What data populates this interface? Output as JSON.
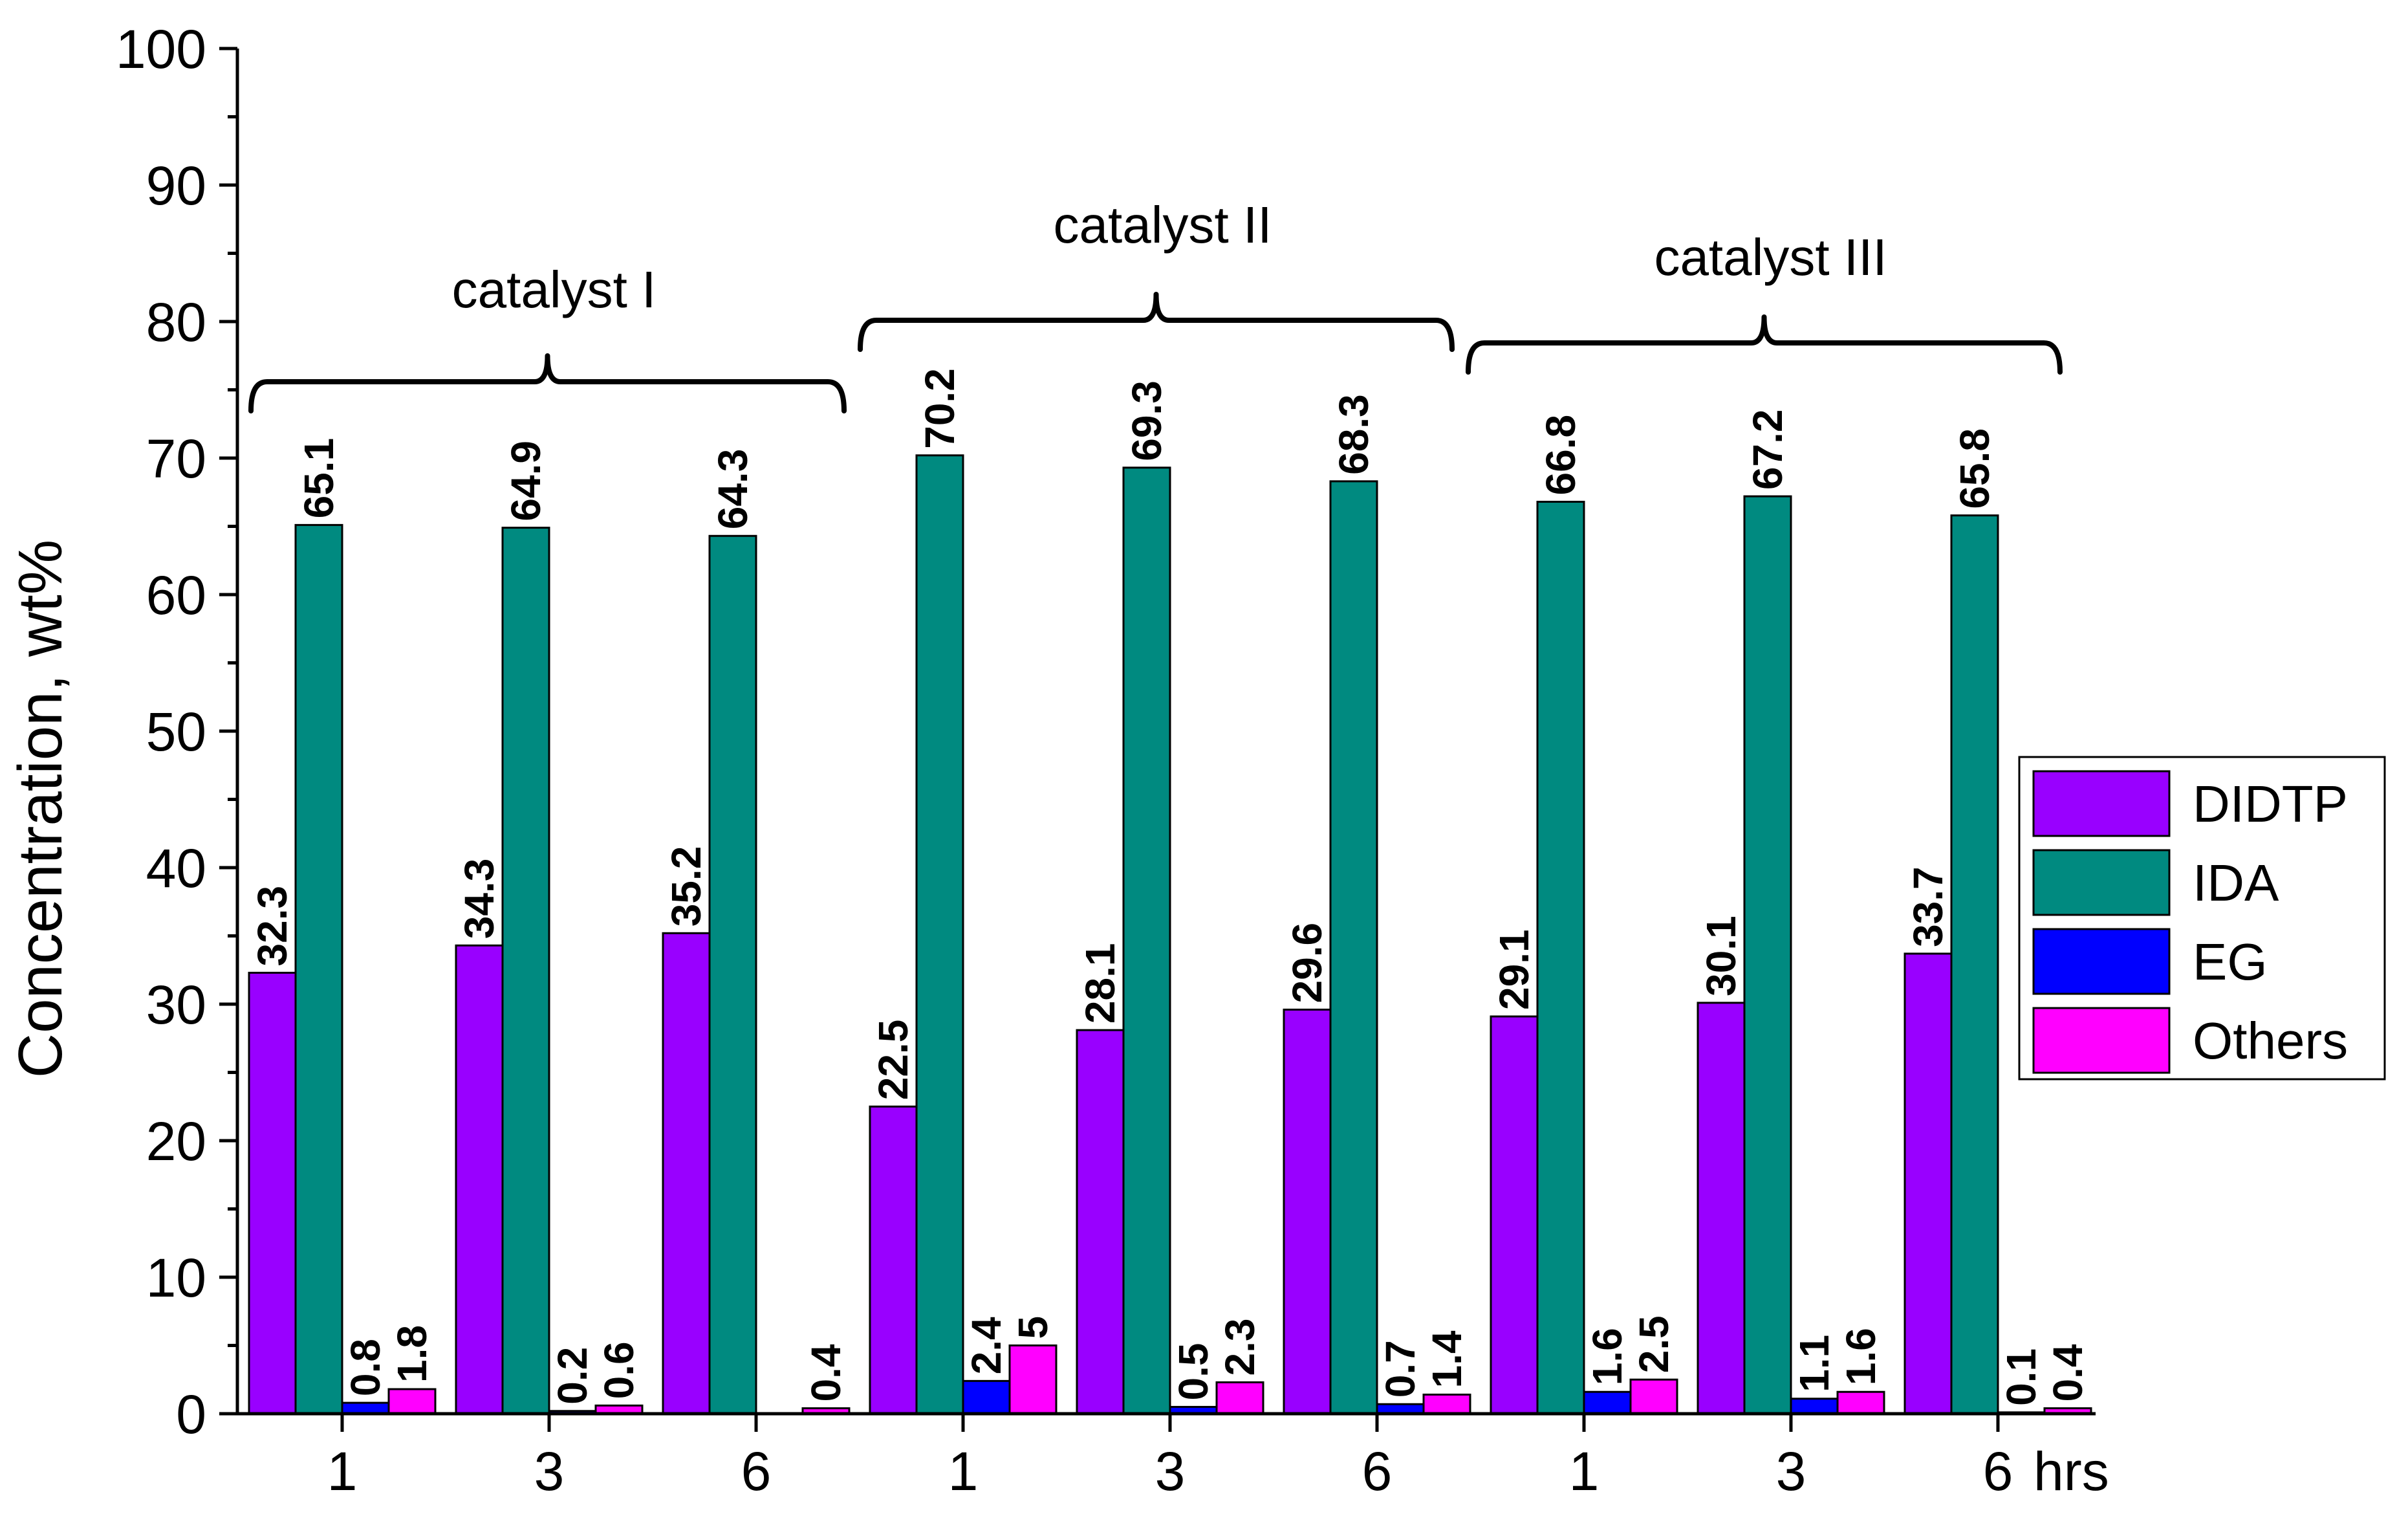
{
  "chart_data": {
    "type": "bar",
    "title": "",
    "xlabel": "",
    "ylabel": "Concentration, wt%",
    "ylim": [
      0,
      100
    ],
    "yticks": [
      0,
      10,
      20,
      30,
      40,
      50,
      60,
      70,
      80,
      90,
      100
    ],
    "x_unit_label": "hrs",
    "groups": [
      {
        "name": "catalyst I",
        "categories": [
          "1",
          "3",
          "6"
        ],
        "series": [
          {
            "name": "DIDTP",
            "values": [
              32.3,
              34.3,
              35.2
            ]
          },
          {
            "name": "IDA",
            "values": [
              65.1,
              64.9,
              64.3
            ]
          },
          {
            "name": "EG",
            "values": [
              0.8,
              0.2,
              null
            ]
          },
          {
            "name": "Others",
            "values": [
              1.8,
              0.6,
              0.4
            ]
          }
        ]
      },
      {
        "name": "catalyst II",
        "categories": [
          "1",
          "3",
          "6"
        ],
        "series": [
          {
            "name": "DIDTP",
            "values": [
              22.5,
              28.1,
              29.6
            ]
          },
          {
            "name": "IDA",
            "values": [
              70.2,
              69.3,
              68.3
            ]
          },
          {
            "name": "EG",
            "values": [
              2.4,
              0.5,
              0.7
            ]
          },
          {
            "name": "Others",
            "values": [
              5,
              2.3,
              1.4
            ]
          }
        ]
      },
      {
        "name": "catalyst III",
        "categories": [
          "1",
          "3",
          "6"
        ],
        "series": [
          {
            "name": "DIDTP",
            "values": [
              29.1,
              30.1,
              33.7
            ]
          },
          {
            "name": "IDA",
            "values": [
              66.8,
              67.2,
              65.8
            ]
          },
          {
            "name": "EG",
            "values": [
              1.6,
              1.1,
              0.1
            ]
          },
          {
            "name": "Others",
            "values": [
              2.5,
              1.6,
              0.4
            ]
          }
        ]
      }
    ],
    "legend": {
      "position": "right",
      "entries": [
        "DIDTP",
        "IDA",
        "EG",
        "Others"
      ]
    },
    "colors": {
      "DIDTP": "#9900ff",
      "IDA": "#008a80",
      "EG": "#0000ff",
      "Others": "#ff00ff"
    },
    "grid": false
  }
}
